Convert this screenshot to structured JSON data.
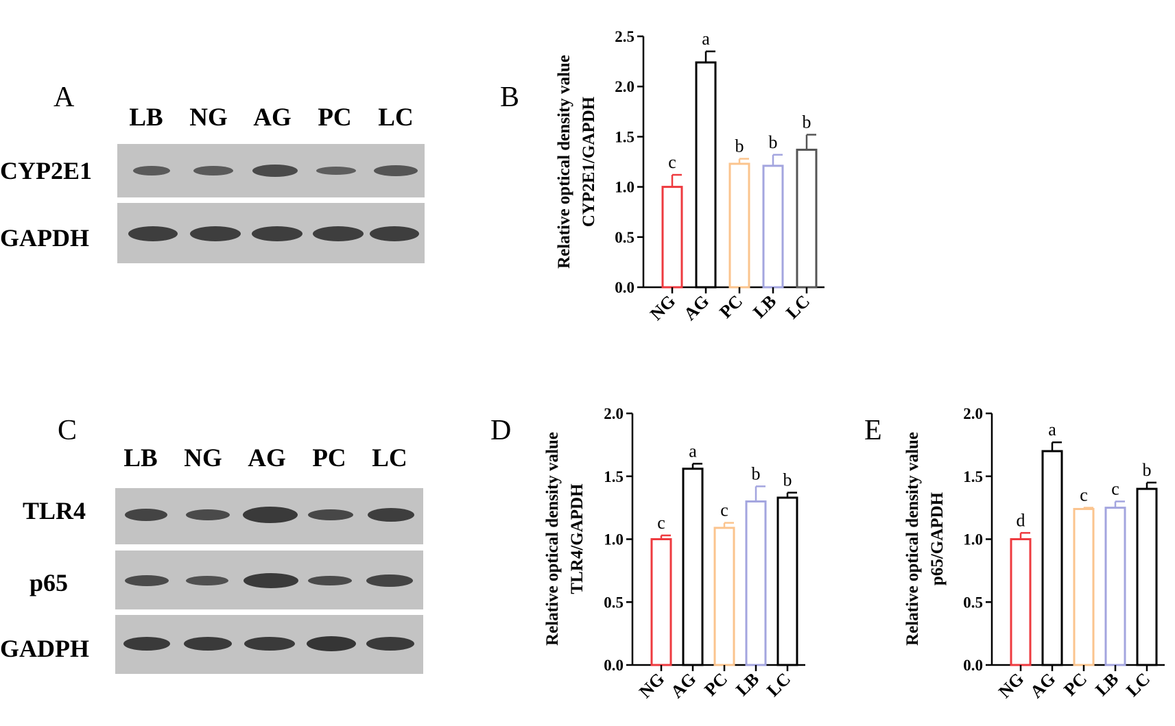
{
  "panels": {
    "A": "A",
    "B": "B",
    "C": "C",
    "D": "D",
    "E": "E"
  },
  "blot_top": {
    "lanes": [
      "LB",
      "NG",
      "AG",
      "PC",
      "LC"
    ],
    "rows": [
      "CYP2E1",
      "GAPDH"
    ]
  },
  "blot_bottom": {
    "lanes": [
      "LB",
      "NG",
      "AG",
      "PC",
      "LC"
    ],
    "rows": [
      "TLR4",
      "p65",
      "GADPH"
    ]
  },
  "colors": {
    "NG": "#ee3a3f",
    "AG": "#000000",
    "PC": "#fbc48e",
    "LB": "#a3a5df",
    "LC": "#555555",
    "LC_D": "#000000",
    "LC_E": "#000000"
  },
  "chart_data": [
    {
      "type": "bar",
      "panel": "B",
      "categories": [
        "NG",
        "AG",
        "PC",
        "LB",
        "LC"
      ],
      "values": [
        1.0,
        2.24,
        1.23,
        1.21,
        1.37
      ],
      "errors": [
        0.12,
        0.11,
        0.05,
        0.11,
        0.15
      ],
      "significance": [
        "c",
        "a",
        "b",
        "b",
        "b"
      ],
      "ylabel_line1": "Relative optical density value",
      "ylabel_line2": "CYP2E1/GAPDH",
      "yticks": [
        "0.0",
        "0.5",
        "1.0",
        "1.5",
        "2.0",
        "2.5"
      ],
      "ylim": [
        0,
        2.5
      ]
    },
    {
      "type": "bar",
      "panel": "D",
      "categories": [
        "NG",
        "AG",
        "PC",
        "LB",
        "LC"
      ],
      "values": [
        1.0,
        1.56,
        1.09,
        1.3,
        1.33
      ],
      "errors": [
        0.03,
        0.04,
        0.04,
        0.12,
        0.04
      ],
      "significance": [
        "c",
        "a",
        "c",
        "b",
        "b"
      ],
      "ylabel_line1": "Relative optical density value",
      "ylabel_line2": "TLR4/GAPDH",
      "yticks": [
        "0.0",
        "0.5",
        "1.0",
        "1.5",
        "2.0"
      ],
      "ylim": [
        0,
        2.0
      ]
    },
    {
      "type": "bar",
      "panel": "E",
      "categories": [
        "NG",
        "AG",
        "PC",
        "LB",
        "LC"
      ],
      "values": [
        1.0,
        1.7,
        1.24,
        1.25,
        1.4
      ],
      "errors": [
        0.05,
        0.07,
        0.01,
        0.05,
        0.05
      ],
      "significance": [
        "d",
        "a",
        "c",
        "c",
        "b"
      ],
      "ylabel_line1": "Relative optical density value",
      "ylabel_line2": "p65/GAPDH",
      "yticks": [
        "0.0",
        "0.5",
        "1.0",
        "1.5",
        "2.0"
      ],
      "ylim": [
        0,
        2.0
      ]
    }
  ]
}
